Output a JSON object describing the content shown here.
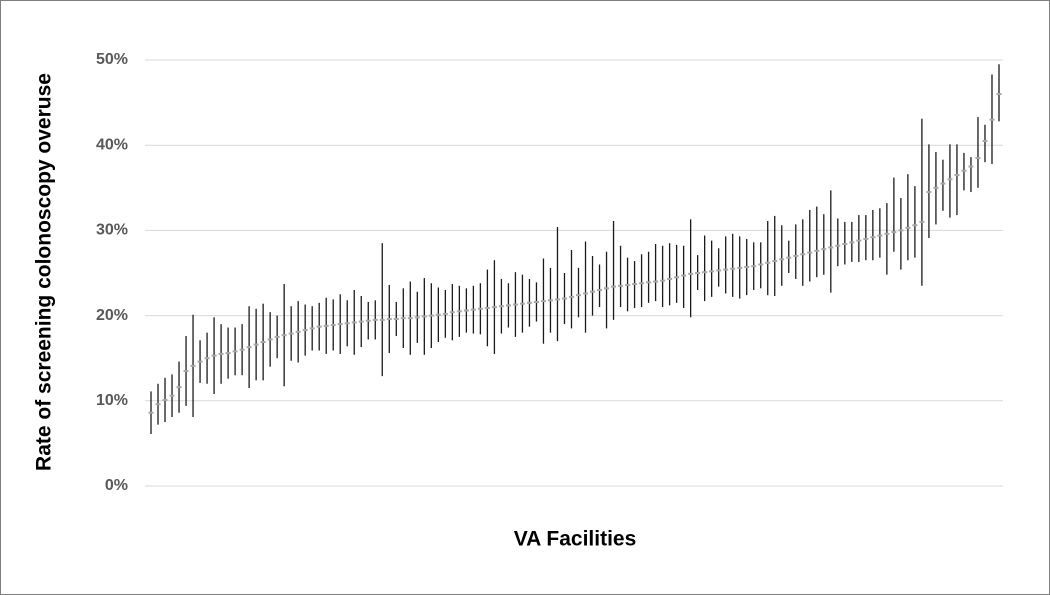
{
  "chart_data": {
    "type": "errorbar",
    "x_label": "VA Facilities",
    "y_label": "Rate of screening colonoscopy overuse",
    "ylim": [
      0,
      50
    ],
    "yticks": [
      {
        "value": 0,
        "label": "0%"
      },
      {
        "value": 10,
        "label": "10%"
      },
      {
        "value": 20,
        "label": "20%"
      },
      {
        "value": 30,
        "label": "30%"
      },
      {
        "value": 40,
        "label": "40%"
      },
      {
        "value": 50,
        "label": "50%"
      }
    ],
    "grid": true,
    "color": "#1a1a1a",
    "point_color": "#a6a6a6",
    "values": [
      8.6,
      9.6,
      10.1,
      10.6,
      11.6,
      13.5,
      14.1,
      14.6,
      15.0,
      15.3,
      15.5,
      15.6,
      15.8,
      16.0,
      16.3,
      16.6,
      16.9,
      17.2,
      17.5,
      17.7,
      17.9,
      18.1,
      18.3,
      18.5,
      18.7,
      18.8,
      18.9,
      19.0,
      19.1,
      19.2,
      19.3,
      19.4,
      19.5,
      19.5,
      19.6,
      19.6,
      19.7,
      19.7,
      19.8,
      19.9,
      20.0,
      20.1,
      20.2,
      20.4,
      20.5,
      20.6,
      20.7,
      20.8,
      20.9,
      21.0,
      21.1,
      21.2,
      21.3,
      21.4,
      21.5,
      21.6,
      21.7,
      21.8,
      21.9,
      22.0,
      22.2,
      22.4,
      22.6,
      22.8,
      23.0,
      23.2,
      23.4,
      23.5,
      23.6,
      23.7,
      23.8,
      23.9,
      24.0,
      24.1,
      24.3,
      24.5,
      24.7,
      24.9,
      25.0,
      25.1,
      25.2,
      25.3,
      25.4,
      25.5,
      25.6,
      25.7,
      25.8,
      26.0,
      26.2,
      26.4,
      26.6,
      26.8,
      27.0,
      27.2,
      27.4,
      27.6,
      27.8,
      28.0,
      28.2,
      28.4,
      28.6,
      28.8,
      29.0,
      29.2,
      29.4,
      29.6,
      29.8,
      30.0,
      30.3,
      30.6,
      31.0,
      34.5,
      35.0,
      35.5,
      36.0,
      36.5,
      37.0,
      37.5,
      38.5,
      40.5,
      43.0,
      46.0
    ],
    "lower": [
      6.1,
      7.2,
      7.5,
      8.1,
      8.6,
      9.4,
      8.1,
      12.1,
      12.0,
      10.8,
      12.0,
      12.6,
      13.0,
      13.0,
      11.5,
      12.4,
      12.4,
      14.0,
      15.0,
      11.7,
      14.7,
      14.5,
      15.3,
      15.9,
      15.9,
      15.5,
      15.9,
      15.5,
      16.4,
      15.4,
      16.3,
      17.2,
      17.2,
      12.9,
      15.6,
      17.6,
      16.2,
      15.4,
      16.8,
      15.4,
      16.2,
      16.9,
      17.4,
      17.1,
      17.5,
      18.0,
      17.9,
      17.8,
      16.4,
      15.5,
      17.9,
      18.6,
      17.5,
      18.0,
      18.7,
      19.3,
      16.7,
      18.0,
      17.0,
      19.0,
      18.5,
      19.8,
      18.0,
      20.0,
      21.0,
      18.5,
      19.5,
      21.0,
      20.5,
      20.9,
      21.0,
      21.5,
      21.7,
      21.0,
      21.2,
      21.5,
      20.9,
      19.8,
      23.0,
      21.7,
      22.2,
      23.4,
      22.6,
      22.2,
      22.0,
      22.4,
      23.0,
      23.2,
      22.4,
      22.3,
      23.5,
      25.0,
      24.3,
      23.5,
      24.0,
      24.5,
      24.8,
      22.7,
      25.8,
      26.0,
      26.3,
      26.3,
      26.5,
      26.5,
      26.8,
      24.8,
      27.5,
      25.4,
      26.5,
      26.8,
      23.5,
      29.1,
      30.7,
      32.3,
      31.5,
      31.8,
      34.7,
      34.5,
      35.0,
      38.0,
      37.8,
      42.8
    ],
    "upper": [
      11.1,
      12.0,
      12.7,
      13.1,
      14.6,
      17.6,
      20.1,
      17.1,
      18.0,
      19.8,
      19.0,
      18.6,
      18.6,
      19.0,
      21.1,
      20.8,
      21.4,
      20.4,
      20.0,
      23.7,
      21.1,
      21.7,
      21.3,
      21.1,
      21.5,
      22.1,
      21.9,
      22.5,
      21.8,
      23.0,
      22.3,
      21.6,
      21.8,
      28.5,
      23.6,
      21.6,
      23.2,
      24.0,
      22.8,
      24.4,
      23.8,
      23.3,
      23.0,
      23.7,
      23.5,
      23.2,
      23.5,
      23.8,
      25.4,
      26.5,
      24.3,
      23.8,
      25.1,
      24.8,
      24.3,
      23.9,
      26.7,
      25.6,
      30.4,
      25.0,
      27.7,
      25.6,
      28.7,
      27.0,
      26.0,
      27.5,
      31.1,
      28.2,
      26.8,
      26.4,
      27.2,
      27.5,
      28.4,
      28.2,
      28.5,
      28.3,
      28.2,
      31.3,
      27.1,
      29.4,
      28.8,
      27.9,
      29.3,
      29.6,
      29.3,
      29.0,
      28.6,
      28.6,
      31.1,
      31.7,
      30.6,
      28.8,
      30.7,
      31.3,
      32.4,
      32.8,
      31.9,
      34.7,
      31.4,
      31.0,
      31.0,
      31.8,
      31.8,
      32.4,
      32.6,
      33.2,
      36.2,
      33.8,
      36.6,
      35.2,
      43.1,
      40.1,
      39.2,
      38.3,
      40.1,
      40.1,
      39.1,
      38.6,
      43.3,
      42.4,
      48.3,
      49.5
    ]
  }
}
